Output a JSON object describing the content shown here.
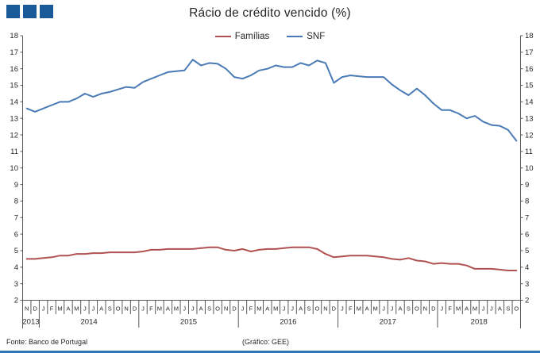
{
  "header": {
    "title": "Rácio de crédito vencido (%)",
    "logo_color": "#1b5a9a",
    "logo_squares": 3
  },
  "legend": [
    {
      "label": "Famílias",
      "color": "#b15151"
    },
    {
      "label": "SNF",
      "color": "#4a7ab5"
    }
  ],
  "chart_data": {
    "type": "line",
    "title": "Rácio de crédito vencido (%)",
    "ylabel": "",
    "xlabel": "",
    "ylim": [
      2,
      18
    ],
    "ytick_step": 1,
    "grid": false,
    "legend_position": "top-center",
    "axis_color": "#595959",
    "label_color": "#262626",
    "month_labels": [
      "N",
      "D",
      "J",
      "F",
      "M",
      "A",
      "M",
      "J",
      "J",
      "A",
      "S",
      "O",
      "N",
      "D",
      "J",
      "F",
      "M",
      "A",
      "M",
      "J",
      "J",
      "A",
      "S",
      "O",
      "N",
      "D",
      "J",
      "F",
      "M",
      "A",
      "M",
      "J",
      "J",
      "A",
      "S",
      "O",
      "N",
      "D",
      "J",
      "F",
      "M",
      "A",
      "M",
      "J",
      "J",
      "A",
      "S",
      "O",
      "N",
      "D",
      "J",
      "F",
      "M",
      "A",
      "M",
      "J",
      "J",
      "A",
      "S",
      "O"
    ],
    "year_groups": [
      {
        "label": "2013",
        "months": 2
      },
      {
        "label": "2014",
        "months": 12
      },
      {
        "label": "2015",
        "months": 12
      },
      {
        "label": "2016",
        "months": 12
      },
      {
        "label": "2017",
        "months": 12
      },
      {
        "label": "2018",
        "months": 10
      }
    ],
    "series": [
      {
        "name": "Famílias",
        "color": "#b15151",
        "values": [
          4.5,
          4.5,
          4.55,
          4.6,
          4.7,
          4.7,
          4.8,
          4.8,
          4.85,
          4.85,
          4.9,
          4.9,
          4.9,
          4.9,
          4.95,
          5.05,
          5.05,
          5.1,
          5.1,
          5.1,
          5.1,
          5.15,
          5.2,
          5.2,
          5.05,
          5.0,
          5.1,
          4.95,
          5.05,
          5.1,
          5.1,
          5.15,
          5.2,
          5.2,
          5.2,
          5.1,
          4.8,
          4.6,
          4.65,
          4.7,
          4.7,
          4.7,
          4.65,
          4.6,
          4.5,
          4.45,
          4.55,
          4.4,
          4.35,
          4.2,
          4.25,
          4.2,
          4.2,
          4.1,
          3.9,
          3.9,
          3.9,
          3.85,
          3.8,
          3.8
        ]
      },
      {
        "name": "SNF",
        "color": "#4a7ab5",
        "values": [
          13.6,
          13.4,
          13.6,
          13.8,
          14.0,
          14.0,
          14.2,
          14.5,
          14.3,
          14.5,
          14.6,
          14.75,
          14.9,
          14.85,
          15.2,
          15.4,
          15.6,
          15.8,
          15.85,
          15.9,
          16.55,
          16.2,
          16.35,
          16.3,
          16.0,
          15.5,
          15.4,
          15.6,
          15.9,
          16.0,
          16.2,
          16.1,
          16.1,
          16.35,
          16.2,
          16.5,
          16.35,
          15.15,
          15.5,
          15.6,
          15.55,
          15.5,
          15.5,
          15.5,
          15.05,
          14.7,
          14.4,
          14.8,
          14.4,
          13.9,
          13.5,
          13.5,
          13.3,
          13.0,
          13.15,
          12.8,
          12.6,
          12.55,
          12.3,
          11.65
        ]
      }
    ]
  },
  "footer": {
    "source": "Fonte: Banco de Portugal",
    "credit": "(Gráfico: GEE)",
    "rule_color": "#2e75b6"
  }
}
